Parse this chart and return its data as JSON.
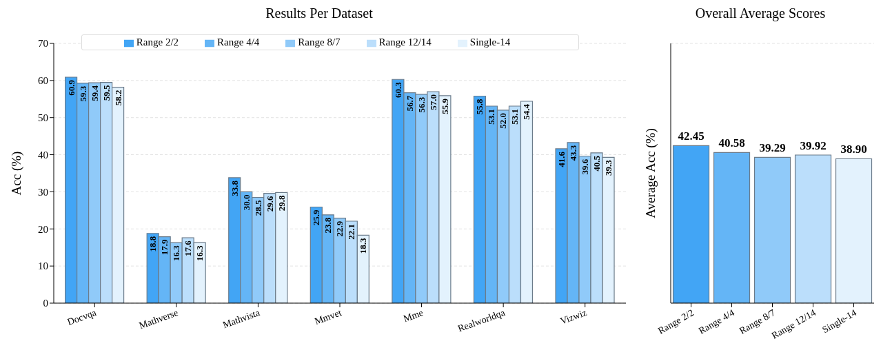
{
  "chart_data": [
    {
      "type": "bar",
      "title": "Results Per Dataset",
      "ylabel": "Acc (%)",
      "categories": [
        "Docvqa",
        "Mathverse",
        "Mathvista",
        "Mmvet",
        "Mme",
        "Realworldqa",
        "Vizwiz"
      ],
      "series": [
        {
          "name": "Range 2/2",
          "color": "#42a5f5",
          "values": [
            60.9,
            18.8,
            33.8,
            25.9,
            60.3,
            55.8,
            41.6
          ],
          "value_labels": [
            "60.9",
            "18.8",
            "33.8",
            "25.9",
            "60.3",
            "55.8",
            "41.6"
          ]
        },
        {
          "name": "Range 4/4",
          "color": "#64b5f6",
          "values": [
            59.3,
            17.9,
            30.0,
            23.8,
            56.7,
            53.1,
            43.3
          ],
          "value_labels": [
            "59.3",
            "17.9",
            "30.0",
            "23.8",
            "56.7",
            "53.1",
            "43.3"
          ]
        },
        {
          "name": "Range 8/7",
          "color": "#90caf9",
          "values": [
            59.4,
            16.3,
            28.5,
            22.9,
            56.3,
            52.0,
            39.6
          ],
          "value_labels": [
            "59.4",
            "16.3",
            "28.5",
            "22.9",
            "56.3",
            "52.0",
            "39.6"
          ]
        },
        {
          "name": "Range 12/14",
          "color": "#bbdefb",
          "values": [
            59.5,
            17.6,
            29.6,
            22.1,
            57.0,
            53.1,
            40.5
          ],
          "value_labels": [
            "59.5",
            "17.6",
            "29.6",
            "22.1",
            "57.0",
            "53.1",
            "40.5"
          ]
        },
        {
          "name": "Single-14",
          "color": "#e3f2fd",
          "values": [
            58.2,
            16.3,
            29.8,
            18.3,
            55.9,
            54.4,
            39.3
          ],
          "value_labels": [
            "58.2",
            "16.3",
            "29.8",
            "18.3",
            "55.9",
            "54.4",
            "39.3"
          ]
        }
      ],
      "ylim": [
        0,
        70
      ],
      "yticks": [
        0,
        10,
        20,
        30,
        40,
        50,
        60,
        70
      ],
      "grid": "y",
      "legend": "top"
    },
    {
      "type": "bar",
      "title": "Overall Average Scores",
      "ylabel": "Average Acc (%)",
      "categories": [
        "Range 2/2",
        "Range 4/4",
        "Range 8/7",
        "Range 12/14",
        "Single-14"
      ],
      "values": [
        42.45,
        40.58,
        39.29,
        39.92,
        38.9
      ],
      "value_labels": [
        "42.45",
        "40.58",
        "39.29",
        "39.92",
        "38.90"
      ],
      "colors": [
        "#42a5f5",
        "#64b5f6",
        "#90caf9",
        "#bbdefb",
        "#e3f2fd"
      ],
      "ylim": [
        0,
        70
      ],
      "yticks": [
        0,
        10,
        20,
        30,
        40,
        50,
        60,
        70
      ],
      "grid": "y",
      "tick_labels": "x"
    }
  ]
}
